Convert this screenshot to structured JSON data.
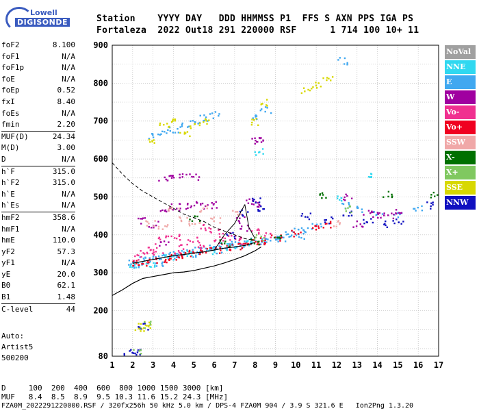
{
  "logo": {
    "top": "Lowell",
    "main": "DIGISONDE"
  },
  "header": {
    "row1": "Station    YYYY DAY   DDD HHMMSS P1  FFS S AXN PPS IGA PS",
    "row2": "Fortaleza  2022 Out18 291 220000 RSF      1 714 100 10+ 11"
  },
  "params": [
    {
      "k": "foF2",
      "v": "8.100"
    },
    {
      "k": "foF1",
      "v": "N/A"
    },
    {
      "k": "foF1p",
      "v": "N/A"
    },
    {
      "k": "foE",
      "v": "N/A"
    },
    {
      "k": "foEp",
      "v": "0.52"
    },
    {
      "k": "fxI",
      "v": "8.40"
    },
    {
      "k": "foEs",
      "v": "N/A"
    },
    {
      "k": "fmin",
      "v": "2.20"
    },
    {
      "k": "MUF(D)",
      "v": "24.34",
      "sep": true
    },
    {
      "k": "M(D)",
      "v": "3.00"
    },
    {
      "k": "D",
      "v": "N/A"
    },
    {
      "k": "h`F",
      "v": "315.0",
      "sep": true
    },
    {
      "k": "h`F2",
      "v": "315.0"
    },
    {
      "k": "h`E",
      "v": "N/A"
    },
    {
      "k": "h`Es",
      "v": "N/A"
    },
    {
      "k": "hmF2",
      "v": "358.6",
      "sep": true
    },
    {
      "k": "hmF1",
      "v": "N/A"
    },
    {
      "k": "hmE",
      "v": "110.0"
    },
    {
      "k": "yF2",
      "v": "57.3"
    },
    {
      "k": "yF1",
      "v": "N/A"
    },
    {
      "k": "yE",
      "v": "20.0"
    },
    {
      "k": "B0",
      "v": "62.1"
    },
    {
      "k": "B1",
      "v": "1.48"
    },
    {
      "k": "C-level",
      "v": "44",
      "sep": true
    }
  ],
  "auto": {
    "l1": "Auto:",
    "l2": "Artist5",
    "l3": "500200"
  },
  "legend": [
    {
      "label": "NoVal",
      "color": "#a0a0a0"
    },
    {
      "label": "NNE",
      "color": "#30d8f0"
    },
    {
      "label": "E",
      "color": "#40a8f0"
    },
    {
      "label": "W",
      "color": "#a000a0"
    },
    {
      "label": "Vo-",
      "color": "#f03090"
    },
    {
      "label": "Vo+",
      "color": "#f00020"
    },
    {
      "label": "SSW",
      "color": "#f0a8a8"
    },
    {
      "label": "X-",
      "color": "#007000"
    },
    {
      "label": "X+",
      "color": "#80c860"
    },
    {
      "label": "SSE",
      "color": "#d8d800"
    },
    {
      "label": "NNW",
      "color": "#1010c0"
    }
  ],
  "footer": {
    "d_row": "D     100  200  400  600  800 1000 1500 3000 [km]",
    "muf_row": "MUF   8.4  8.5  8.9  9.5 10.3 11.6 15.2 24.3 [MHz]",
    "info_row": "FZA0M_2022291220000.RSF / 320fx256h 50 kHz 5.0 km / DPS-4 FZA0M 904 / 3.9 S 321.6 E   Ion2Png 1.3.20"
  },
  "chart_data": {
    "type": "scatter",
    "xlim": [
      1,
      17
    ],
    "ylim": [
      80,
      900
    ],
    "xticks": [
      1,
      2,
      3,
      4,
      5,
      6,
      7,
      8,
      9,
      10,
      11,
      12,
      13,
      14,
      15,
      16,
      17
    ],
    "yticks": [
      80,
      200,
      300,
      400,
      500,
      600,
      700,
      800,
      900
    ],
    "grid": true,
    "series": [
      {
        "name": "E",
        "color": "#40a8f0",
        "points": [
          [
            2.0,
            330
          ],
          [
            2.5,
            335
          ],
          [
            3.0,
            340
          ],
          [
            3.5,
            345
          ],
          [
            4.0,
            350
          ],
          [
            4.5,
            355
          ],
          [
            5.0,
            360
          ],
          [
            5.5,
            365
          ],
          [
            6.0,
            368
          ],
          [
            6.5,
            372
          ],
          [
            7.0,
            375
          ],
          [
            7.5,
            378
          ],
          [
            8.0,
            385
          ],
          [
            8.5,
            390
          ],
          [
            9.0,
            398
          ],
          [
            9.5,
            402
          ],
          [
            10.0,
            410
          ],
          [
            10.5,
            418
          ],
          [
            11.0,
            425
          ],
          [
            3.0,
            660
          ],
          [
            3.5,
            670
          ],
          [
            4.0,
            680
          ],
          [
            4.5,
            690
          ],
          [
            5.0,
            700
          ],
          [
            5.5,
            710
          ],
          [
            6.0,
            718
          ],
          [
            8.0,
            710
          ],
          [
            8.5,
            730
          ],
          [
            12.3,
            860
          ],
          [
            12.5,
            480
          ],
          [
            13.2,
            470
          ],
          [
            14.0,
            460
          ],
          [
            15.0,
            455
          ],
          [
            16.0,
            470
          ],
          [
            2.3,
            320
          ],
          [
            3.2,
            325
          ],
          [
            4.2,
            345
          ],
          [
            5.2,
            352
          ],
          [
            6.2,
            362
          ],
          [
            7.2,
            370
          ],
          [
            8.2,
            382
          ],
          [
            9.2,
            392
          ],
          [
            10.2,
            400
          ]
        ]
      },
      {
        "name": "W",
        "color": "#a000a0",
        "points": [
          [
            3.5,
            550
          ],
          [
            4.0,
            552
          ],
          [
            4.5,
            555
          ],
          [
            5.0,
            555
          ],
          [
            3.5,
            470
          ],
          [
            4.0,
            475
          ],
          [
            4.5,
            478
          ],
          [
            5.0,
            480
          ],
          [
            5.5,
            478
          ],
          [
            6.0,
            480
          ],
          [
            8.0,
            650
          ],
          [
            8.2,
            655
          ],
          [
            7.8,
            490
          ],
          [
            8.0,
            480
          ],
          [
            13.5,
            460
          ],
          [
            14.0,
            455
          ],
          [
            14.5,
            450
          ],
          [
            15.0,
            460
          ],
          [
            2.5,
            440
          ],
          [
            3.0,
            430
          ],
          [
            3.5,
            380
          ],
          [
            7.2,
            440
          ],
          [
            7.5,
            420
          ],
          [
            13.0,
            430
          ],
          [
            12.5,
            500
          ]
        ]
      },
      {
        "name": "Vo-",
        "color": "#f03090",
        "points": [
          [
            2.5,
            360
          ],
          [
            3.0,
            370
          ],
          [
            3.5,
            390
          ],
          [
            4.0,
            400
          ],
          [
            4.5,
            380
          ],
          [
            5.0,
            390
          ],
          [
            5.5,
            420
          ],
          [
            6.0,
            410
          ],
          [
            6.5,
            400
          ],
          [
            7.0,
            395
          ],
          [
            8.0,
            410
          ],
          [
            8.5,
            400
          ],
          [
            2.2,
            340
          ],
          [
            3.2,
            350
          ],
          [
            4.2,
            360
          ],
          [
            5.2,
            370
          ],
          [
            6.2,
            380
          ],
          [
            7.2,
            385
          ]
        ]
      },
      {
        "name": "Vo+",
        "color": "#f00020",
        "points": [
          [
            2.0,
            325
          ],
          [
            2.5,
            328
          ],
          [
            3.0,
            332
          ],
          [
            3.5,
            338
          ],
          [
            4.0,
            342
          ],
          [
            4.5,
            348
          ],
          [
            5.0,
            352
          ],
          [
            5.5,
            358
          ],
          [
            6.0,
            362
          ],
          [
            6.5,
            366
          ],
          [
            7.0,
            370
          ],
          [
            7.5,
            375
          ],
          [
            8.0,
            380
          ],
          [
            8.5,
            385
          ],
          [
            9.0,
            392
          ],
          [
            10.0,
            405
          ],
          [
            11.0,
            420
          ],
          [
            11.5,
            430
          ]
        ]
      },
      {
        "name": "SSE",
        "color": "#d8d800",
        "points": [
          [
            3.0,
            650
          ],
          [
            3.5,
            690
          ],
          [
            4.0,
            700
          ],
          [
            4.5,
            670
          ],
          [
            5.0,
            690
          ],
          [
            5.5,
            700
          ],
          [
            8.0,
            700
          ],
          [
            8.5,
            750
          ],
          [
            11.0,
            795
          ],
          [
            11.5,
            810
          ],
          [
            10.5,
            780
          ],
          [
            2.5,
            160
          ],
          [
            2.6,
            165
          ],
          [
            2.3,
            155
          ]
        ]
      },
      {
        "name": "NNW",
        "color": "#1010c0",
        "points": [
          [
            2.0,
            90
          ],
          [
            1.8,
            85
          ],
          [
            2.2,
            95
          ],
          [
            2.5,
            160
          ],
          [
            8.0,
            490
          ],
          [
            8.2,
            470
          ],
          [
            10.5,
            450
          ],
          [
            11.5,
            440
          ],
          [
            12.5,
            460
          ],
          [
            13.5,
            440
          ],
          [
            14.5,
            430
          ],
          [
            15.0,
            440
          ],
          [
            16.5,
            480
          ],
          [
            7.5,
            460
          ],
          [
            6.8,
            400
          ]
        ]
      },
      {
        "name": "NNE",
        "color": "#30d8f0",
        "points": [
          [
            2.0,
            320
          ],
          [
            2.8,
            325
          ],
          [
            3.8,
            340
          ],
          [
            4.8,
            350
          ],
          [
            5.8,
            360
          ],
          [
            6.8,
            370
          ],
          [
            7.8,
            378
          ],
          [
            12.2,
            500
          ],
          [
            13.5,
            560
          ],
          [
            8.2,
            620
          ]
        ]
      },
      {
        "name": "SSW",
        "color": "#f0a8a8",
        "points": [
          [
            4.0,
            470
          ],
          [
            4.5,
            440
          ],
          [
            5.0,
            430
          ],
          [
            5.5,
            470
          ],
          [
            6.0,
            440
          ],
          [
            2.8,
            430
          ],
          [
            3.5,
            420
          ],
          [
            7.0,
            460
          ],
          [
            12.0,
            430
          ]
        ]
      },
      {
        "name": "X-",
        "color": "#007000",
        "points": [
          [
            5.0,
            445
          ],
          [
            8.0,
            385
          ],
          [
            9.0,
            395
          ],
          [
            11.2,
            505
          ],
          [
            16.8,
            505
          ],
          [
            14.5,
            510
          ],
          [
            6.5,
            380
          ]
        ]
      },
      {
        "name": "X+",
        "color": "#80c860",
        "points": [
          [
            2.2,
            90
          ],
          [
            2.6,
            165
          ],
          [
            8.2,
            395
          ],
          [
            12.6,
            470
          ]
        ]
      }
    ],
    "curves": {
      "solid": [
        [
          1.0,
          240
        ],
        [
          1.5,
          255
        ],
        [
          2.0,
          272
        ],
        [
          2.5,
          285
        ],
        [
          3.0,
          290
        ],
        [
          3.5,
          295
        ],
        [
          4.0,
          300
        ],
        [
          4.5,
          302
        ],
        [
          5.0,
          306
        ],
        [
          5.5,
          312
        ],
        [
          6.0,
          318
        ],
        [
          6.5,
          326
        ],
        [
          7.0,
          335
        ],
        [
          7.5,
          345
        ],
        [
          8.0,
          358
        ],
        [
          8.3,
          368
        ]
      ],
      "dashed": [
        [
          1.0,
          590
        ],
        [
          1.5,
          560
        ],
        [
          2.0,
          535
        ],
        [
          2.5,
          515
        ],
        [
          3.0,
          500
        ],
        [
          3.5,
          485
        ],
        [
          4.0,
          470
        ],
        [
          4.5,
          455
        ],
        [
          5.0,
          445
        ],
        [
          5.5,
          435
        ],
        [
          6.0,
          420
        ],
        [
          6.5,
          410
        ],
        [
          7.0,
          400
        ],
        [
          7.5,
          390
        ],
        [
          8.0,
          385
        ]
      ],
      "trace": [
        [
          2.0,
          325
        ],
        [
          2.5,
          330
        ],
        [
          3.0,
          335
        ],
        [
          3.5,
          340
        ],
        [
          4.0,
          345
        ],
        [
          4.5,
          348
        ],
        [
          5.0,
          352
        ],
        [
          5.5,
          355
        ],
        [
          6.0,
          360
        ],
        [
          6.5,
          365
        ],
        [
          7.0,
          368
        ],
        [
          7.5,
          372
        ],
        [
          8.0,
          380
        ]
      ],
      "spike_a": [
        [
          6.0,
          360
        ],
        [
          6.5,
          400
        ],
        [
          7.0,
          430
        ],
        [
          7.5,
          480
        ]
      ],
      "spike_b": [
        [
          7.5,
          480
        ],
        [
          7.7,
          420
        ],
        [
          8.0,
          390
        ]
      ]
    }
  }
}
